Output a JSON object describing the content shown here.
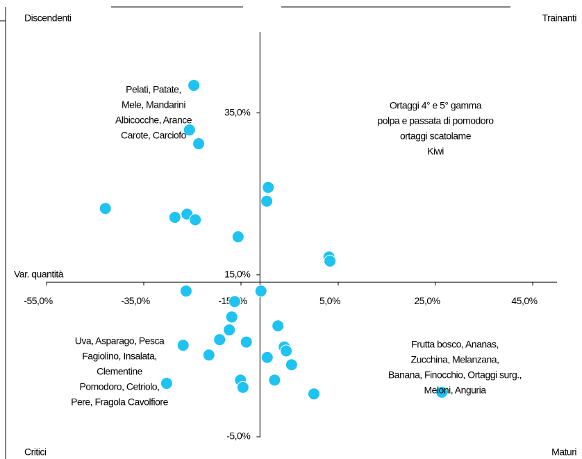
{
  "chart_data": {
    "type": "scatter",
    "x_label": "Var. quantità",
    "quadrant_labels": {
      "top_left": "Discendenti",
      "top_right": "Trainanti",
      "bottom_left": "Critici",
      "bottom_right": "Maturi"
    },
    "annotations": [
      {
        "lines": [
          "Pelati, Patate,",
          "Mele, Mandarini",
          "Albicocche, Arance",
          "Carote, Carciofo"
        ],
        "x": -33,
        "y": 35
      },
      {
        "lines": [
          "Ortaggi 4° e 5° gamma",
          "polpa e passata di pomodoro",
          "ortaggi scatolame",
          "Kiwi"
        ],
        "x": 25,
        "y": 33
      },
      {
        "lines": [
          "Uva, Asparago, Pesca",
          "Fagiolino, Insalata,",
          "Clementine",
          "Pomodoro, Cetriolo,",
          "Pere, Fragola Cavolfiore"
        ],
        "x": -40,
        "y": 3
      },
      {
        "lines": [
          "Frutta bosco, Ananas,",
          "Zucchina, Melanzana,",
          "Banana, Finocchio, Ortaggi surg.,",
          "Meloni, Anguria"
        ],
        "x": 29,
        "y": 3.5
      }
    ],
    "color": "#1ec3f2",
    "x": [
      -24.7,
      -25.6,
      -23.7,
      -9.4,
      -9.7,
      -42.9,
      -26.1,
      -28.6,
      -24.4,
      -15.6,
      3.1,
      3.3,
      -10.9,
      -26.3,
      -16.3,
      -16.9,
      -7.4,
      -17.4,
      -19.4,
      -13.9,
      -26.9,
      -6.1,
      -5.7,
      -21.6,
      -9.6,
      -4.6,
      -15.1,
      -8.1,
      -30.3,
      -14.6,
      0.0,
      26.3
    ],
    "values": [
      38.4,
      32.9,
      31.2,
      25.8,
      24.1,
      23.2,
      22.5,
      22.1,
      21.8,
      19.7,
      17.2,
      16.7,
      13.0,
      13.0,
      11.7,
      9.8,
      8.7,
      8.2,
      7.0,
      6.7,
      6.3,
      6.1,
      5.6,
      5.1,
      4.8,
      3.9,
      2.0,
      2.0,
      1.6,
      1.1,
      0.3,
      0.5
    ],
    "xlim": [
      -55,
      50
    ],
    "ylim": [
      -5,
      45
    ],
    "x_cross": -11.1,
    "y_cross": 14.1,
    "xticks": [
      {
        "value": -55,
        "label": "-55,0%"
      },
      {
        "value": -35,
        "label": "-35,0%"
      },
      {
        "value": -15,
        "label": "-15,0%"
      },
      {
        "value": 5,
        "label": "5,0%"
      },
      {
        "value": 25,
        "label": "25,0%"
      },
      {
        "value": 45,
        "label": "45,0%"
      }
    ],
    "yticks": [
      {
        "value": -5,
        "label": "-5,0%"
      },
      {
        "value": 15,
        "label": "15,0%"
      },
      {
        "value": 35,
        "label": "35,0%"
      }
    ]
  }
}
